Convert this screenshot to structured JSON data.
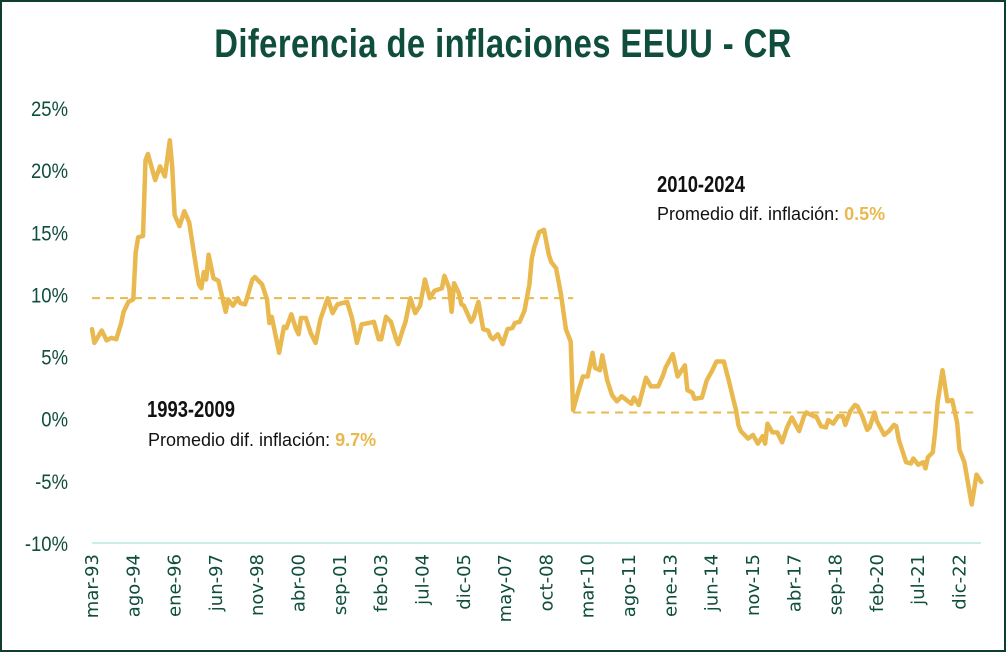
{
  "chart_data": {
    "type": "line",
    "title": "Diferencia de inflaciones EEUU - CR",
    "xlabel": "",
    "ylabel": "",
    "x_unit": "months since mar-93",
    "y_ticks": [
      "25%",
      "20%",
      "15%",
      "10%",
      "5%",
      "0%",
      "-5%",
      "-10%"
    ],
    "y_tick_values": [
      25,
      20,
      15,
      10,
      5,
      0,
      -5,
      -10
    ],
    "ylim": [
      -10,
      25
    ],
    "xlim": [
      0,
      367
    ],
    "x_tick_labels": [
      "mar-93",
      "ago-94",
      "ene-96",
      "jun-97",
      "nov-98",
      "abr-00",
      "sep-01",
      "feb-03",
      "jul-04",
      "dic-05",
      "may-07",
      "oct-08",
      "mar-10",
      "ago-11",
      "ene-13",
      "jun-14",
      "nov-15",
      "abr-17",
      "sep-18",
      "feb-20",
      "jul-21",
      "dic-22"
    ],
    "x_tick_step_months": 17,
    "grid": false,
    "series": [
      {
        "name": "Diferencia de inflaciones",
        "color": "#e9b84f",
        "points": [
          [
            0,
            7.2
          ],
          [
            1,
            6.1
          ],
          [
            4,
            7.1
          ],
          [
            6,
            6.3
          ],
          [
            8,
            6.5
          ],
          [
            10,
            6.4
          ],
          [
            12,
            7.7
          ],
          [
            13,
            8.6
          ],
          [
            15,
            9.4
          ],
          [
            17,
            9.6
          ],
          [
            18,
            13.4
          ],
          [
            19,
            14.6
          ],
          [
            21,
            14.7
          ],
          [
            22,
            20.8
          ],
          [
            23,
            21.3
          ],
          [
            26,
            19.2
          ],
          [
            28,
            20.3
          ],
          [
            30,
            19.5
          ],
          [
            32,
            22.4
          ],
          [
            33,
            20.3
          ],
          [
            34,
            16.4
          ],
          [
            36,
            15.5
          ],
          [
            38,
            16.7
          ],
          [
            40,
            15.8
          ],
          [
            43,
            12
          ],
          [
            44,
            10.8
          ],
          [
            45,
            10.5
          ],
          [
            46,
            11.8
          ],
          [
            47,
            11.2
          ],
          [
            48,
            13.2
          ],
          [
            50,
            11.3
          ],
          [
            52,
            11.1
          ],
          [
            55,
            8.6
          ],
          [
            56,
            9.6
          ],
          [
            58,
            9.1
          ],
          [
            60,
            9.7
          ],
          [
            61,
            9.3
          ],
          [
            63,
            9.2
          ],
          [
            66,
            11.2
          ],
          [
            67,
            11.4
          ],
          [
            70,
            10.8
          ],
          [
            72,
            9.6
          ],
          [
            73,
            7.7
          ],
          [
            74,
            8.2
          ],
          [
            77,
            5.3
          ],
          [
            79,
            7.4
          ],
          [
            80,
            7.3
          ],
          [
            82,
            8.4
          ],
          [
            84,
            7.2
          ],
          [
            85,
            6.8
          ],
          [
            86,
            8.1
          ],
          [
            88,
            8.1
          ],
          [
            90,
            6.9
          ],
          [
            92,
            6.1
          ],
          [
            94,
            8.0
          ],
          [
            97,
            9.7
          ],
          [
            99,
            8.5
          ],
          [
            101,
            9.2
          ],
          [
            103,
            9.3
          ],
          [
            105,
            9.4
          ],
          [
            107,
            8.1
          ],
          [
            109,
            6.1
          ],
          [
            111,
            7.6
          ],
          [
            114,
            7.7
          ],
          [
            116,
            7.8
          ],
          [
            118,
            6.4
          ],
          [
            119,
            6.4
          ],
          [
            121,
            8.2
          ],
          [
            123,
            7.8
          ],
          [
            125,
            6.5
          ],
          [
            126,
            6.0
          ],
          [
            128,
            7.2
          ],
          [
            129,
            7.8
          ],
          [
            131,
            9.7
          ],
          [
            133,
            8.5
          ],
          [
            135,
            9.1
          ],
          [
            137,
            11.2
          ],
          [
            139,
            9.7
          ],
          [
            141,
            10.3
          ],
          [
            144,
            10.5
          ],
          [
            145,
            11.5
          ],
          [
            147,
            10.5
          ],
          [
            148,
            8.6
          ],
          [
            149,
            10.9
          ],
          [
            151,
            10.1
          ],
          [
            152,
            9.2
          ],
          [
            153,
            9.1
          ],
          [
            156,
            7.8
          ],
          [
            157,
            8.1
          ],
          [
            159,
            9.4
          ],
          [
            161,
            7.2
          ],
          [
            163,
            7.1
          ],
          [
            164,
            6.6
          ],
          [
            165,
            6.4
          ],
          [
            167,
            6.8
          ],
          [
            169,
            6.0
          ],
          [
            171,
            7.2
          ],
          [
            173,
            7.3
          ],
          [
            174,
            7.7
          ],
          [
            176,
            7.8
          ],
          [
            178,
            8.7
          ],
          [
            180,
            10.8
          ],
          [
            181,
            12.9
          ],
          [
            182,
            13.8
          ],
          [
            184,
            15.0
          ],
          [
            186,
            15.2
          ],
          [
            188,
            13.2
          ],
          [
            189,
            12.6
          ],
          [
            191,
            12.1
          ],
          [
            193,
            10.0
          ],
          [
            195,
            7.2
          ],
          [
            197,
            6.2
          ],
          [
            198,
            0.7
          ],
          [
            200,
            2.1
          ],
          [
            202,
            3.4
          ],
          [
            204,
            3.4
          ],
          [
            206,
            5.3
          ],
          [
            207,
            4.1
          ],
          [
            209,
            3.9
          ],
          [
            210,
            5.1
          ],
          [
            212,
            3.1
          ],
          [
            214,
            1.9
          ],
          [
            216,
            1.4
          ],
          [
            218,
            1.8
          ],
          [
            220,
            1.5
          ],
          [
            222,
            1.2
          ],
          [
            223,
            1.7
          ],
          [
            225,
            1.1
          ],
          [
            228,
            3.3
          ],
          [
            230,
            2.6
          ],
          [
            233,
            2.6
          ],
          [
            235,
            3.5
          ],
          [
            236,
            4.1
          ],
          [
            239,
            5.2
          ],
          [
            241,
            3.4
          ],
          [
            244,
            4.3
          ],
          [
            245,
            2.3
          ],
          [
            247,
            2.1
          ],
          [
            248,
            1.6
          ],
          [
            251,
            1.7
          ],
          [
            253,
            3.1
          ],
          [
            255,
            3.8
          ],
          [
            257,
            4.6
          ],
          [
            260,
            4.6
          ],
          [
            262,
            3.1
          ],
          [
            264,
            1.5
          ],
          [
            265,
            0.7
          ],
          [
            266,
            -0.5
          ],
          [
            267,
            -1.0
          ],
          [
            270,
            -1.6
          ],
          [
            272,
            -1.3
          ],
          [
            274,
            -2.0
          ],
          [
            276,
            -1.4
          ],
          [
            277,
            -2.0
          ],
          [
            278,
            -0.4
          ],
          [
            280,
            -1.1
          ],
          [
            282,
            -1.1
          ],
          [
            284,
            -1.9
          ],
          [
            286,
            -0.7
          ],
          [
            288,
            0.1
          ],
          [
            291,
            -1.0
          ],
          [
            293,
            0.2
          ],
          [
            294,
            0.5
          ],
          [
            297,
            0.2
          ],
          [
            298,
            0.2
          ],
          [
            300,
            -0.6
          ],
          [
            302,
            -0.7
          ],
          [
            303,
            -0.1
          ],
          [
            305,
            -0.4
          ],
          [
            307,
            0.2
          ],
          [
            309,
            0.2
          ],
          [
            310,
            -0.5
          ],
          [
            312,
            0.6
          ],
          [
            314,
            1.1
          ],
          [
            315,
            1.0
          ],
          [
            317,
            0.2
          ],
          [
            319,
            -0.9
          ],
          [
            320,
            -0.7
          ],
          [
            322,
            0.5
          ],
          [
            323,
            -0.2
          ],
          [
            326,
            -1.3
          ],
          [
            328,
            -1.0
          ],
          [
            330,
            -0.5
          ],
          [
            331,
            -0.6
          ],
          [
            332,
            -1.7
          ],
          [
            335,
            -3.5
          ],
          [
            337,
            -3.6
          ],
          [
            338,
            -3.2
          ],
          [
            340,
            -3.7
          ],
          [
            342,
            -3.5
          ],
          [
            343,
            -4.0
          ],
          [
            344,
            -3.1
          ],
          [
            346,
            -2.7
          ],
          [
            347,
            -1.0
          ],
          [
            348,
            1.3
          ],
          [
            350,
            3.9
          ],
          [
            352,
            1.4
          ],
          [
            354,
            1.5
          ],
          [
            356,
            -0.3
          ],
          [
            357,
            -2.5
          ],
          [
            359,
            -3.5
          ],
          [
            362,
            -6.9
          ],
          [
            364,
            -4.5
          ],
          [
            366,
            -5.1
          ]
        ]
      }
    ],
    "reference_lines": [
      {
        "name": "Promedio 1993-2009",
        "value": 9.7,
        "x_range": [
          0,
          198
        ],
        "style": "dashed"
      },
      {
        "name": "Promedio 2010-2024",
        "value": 0.5,
        "x_range": [
          198,
          364
        ],
        "style": "dashed"
      }
    ],
    "annotations": [
      {
        "heading": "1993-2009",
        "text": "Promedio dif. inflación: ",
        "value": "9.7%"
      },
      {
        "heading": "2010-2024",
        "text": "Promedio dif. inflación: ",
        "value": "0.5%"
      }
    ]
  }
}
